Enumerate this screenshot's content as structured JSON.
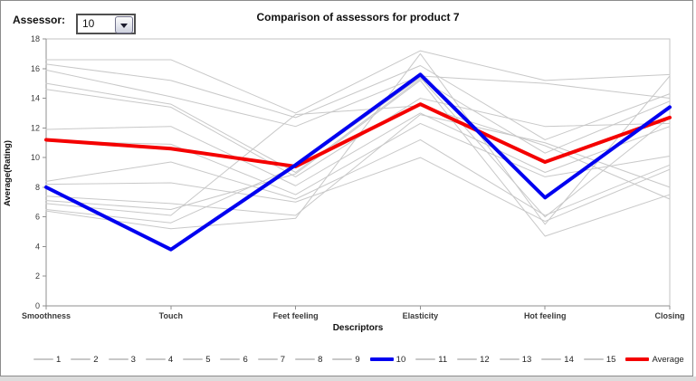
{
  "window": {
    "footer_color": "#dcdcdc",
    "border_color": "#8c8c8c"
  },
  "controls": {
    "assessor_label": "Assessor:",
    "assessor_value": "10"
  },
  "chart_data": {
    "type": "line",
    "title": "Comparison of assessors for product 7",
    "xlabel": "Descriptors",
    "ylabel": "Average(Rating)",
    "categories": [
      "Smoothness",
      "Touch",
      "Feet feeling",
      "Elasticity",
      "Hot feeling",
      "Closing"
    ],
    "ylim": [
      0,
      18
    ],
    "ytick_step": 2,
    "grid": false,
    "legend_position": "bottom",
    "highlighted_series": "10",
    "colors": {
      "selected": "#0000f0",
      "average": "#f40000",
      "other": "#c8c8c8",
      "axis": "#8f8f8f",
      "plot_border": "#c3c3c3",
      "tick_text": "#3a3a3a"
    },
    "series": [
      {
        "name": "1",
        "values": [
          16.6,
          16.6,
          13.0,
          17.2,
          15.2,
          15.6
        ],
        "color": "#c8c8c8",
        "width": 1,
        "z": 0
      },
      {
        "name": "2",
        "values": [
          16.3,
          15.2,
          12.7,
          16.2,
          11.2,
          14.3
        ],
        "color": "#c8c8c8",
        "width": 1,
        "z": 0
      },
      {
        "name": "3",
        "values": [
          15.9,
          14.1,
          12.1,
          15.5,
          15.0,
          14.0
        ],
        "color": "#c8c8c8",
        "width": 1,
        "z": 0
      },
      {
        "name": "4",
        "values": [
          15.0,
          13.6,
          9.0,
          15.3,
          10.3,
          13.8
        ],
        "color": "#c8c8c8",
        "width": 1,
        "z": 0
      },
      {
        "name": "5",
        "values": [
          14.6,
          13.4,
          8.7,
          14.0,
          12.1,
          12.3
        ],
        "color": "#c8c8c8",
        "width": 1,
        "z": 0
      },
      {
        "name": "6",
        "values": [
          11.9,
          12.1,
          8.1,
          13.0,
          9.0,
          12.1
        ],
        "color": "#c8c8c8",
        "width": 1,
        "z": 0
      },
      {
        "name": "7",
        "values": [
          11.1,
          10.9,
          7.5,
          12.3,
          8.7,
          10.1
        ],
        "color": "#c8c8c8",
        "width": 1,
        "z": 0
      },
      {
        "name": "8",
        "values": [
          8.4,
          9.7,
          7.2,
          11.2,
          6.1,
          9.5
        ],
        "color": "#c8c8c8",
        "width": 1,
        "z": 0
      },
      {
        "name": "9",
        "values": [
          8.2,
          8.3,
          7.0,
          10.0,
          5.7,
          9.2
        ],
        "color": "#c8c8c8",
        "width": 1,
        "z": 0
      },
      {
        "name": "10",
        "values": [
          8.0,
          3.8,
          9.5,
          15.6,
          7.3,
          13.4
        ],
        "color": "#0000f0",
        "width": 4,
        "z": 2
      },
      {
        "name": "11",
        "values": [
          7.4,
          6.9,
          6.1,
          12.9,
          11.0,
          8.0
        ],
        "color": "#c8c8c8",
        "width": 1,
        "z": 0
      },
      {
        "name": "12",
        "values": [
          7.1,
          6.5,
          8.9,
          15.2,
          4.7,
          7.5
        ],
        "color": "#c8c8c8",
        "width": 1,
        "z": 0
      },
      {
        "name": "13",
        "values": [
          6.9,
          6.1,
          12.9,
          13.5,
          10.8,
          7.2
        ],
        "color": "#c8c8c8",
        "width": 1,
        "z": 0
      },
      {
        "name": "14",
        "values": [
          6.5,
          5.6,
          9.4,
          15.4,
          6.0,
          12.7
        ],
        "color": "#c8c8c8",
        "width": 1,
        "z": 0
      },
      {
        "name": "15",
        "values": [
          6.4,
          5.2,
          5.9,
          17.0,
          5.5,
          15.5
        ],
        "color": "#c8c8c8",
        "width": 1,
        "z": 0
      },
      {
        "name": "Average",
        "values": [
          11.2,
          10.6,
          9.4,
          13.6,
          9.7,
          12.7
        ],
        "color": "#f40000",
        "width": 4,
        "z": 1
      }
    ]
  }
}
